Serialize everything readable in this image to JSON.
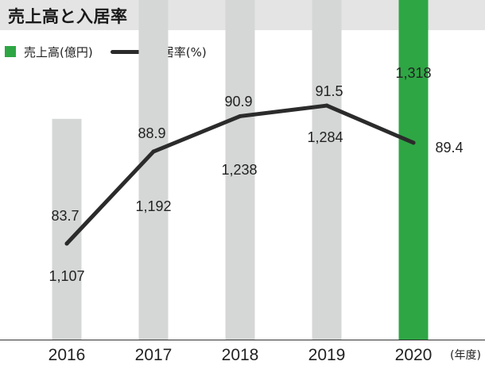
{
  "title": "売上高と入居率",
  "legend": {
    "bar_label": "売上高(億円)",
    "line_label": "入居率(%)"
  },
  "colors": {
    "bar_default": "#d5d7d6",
    "bar_highlight": "#2ea644",
    "line": "#2b2b2b",
    "title_bg": "#e4e4e4"
  },
  "chart_data": {
    "type": "bar+line",
    "categories": [
      "2016",
      "2017",
      "2018",
      "2019",
      "2020"
    ],
    "x_unit": "(年度)",
    "series": [
      {
        "name": "売上高(億円)",
        "type": "bar",
        "values": [
          1107,
          1192,
          1238,
          1284,
          1318
        ],
        "labels": [
          "1,107",
          "1,192",
          "1,238",
          "1,284",
          "1,318"
        ],
        "highlight_index": 4
      },
      {
        "name": "入居率(%)",
        "type": "line",
        "values": [
          83.7,
          88.9,
          90.9,
          91.5,
          89.4
        ],
        "labels": [
          "83.7",
          "88.9",
          "90.9",
          "91.5",
          "89.4"
        ]
      }
    ]
  }
}
